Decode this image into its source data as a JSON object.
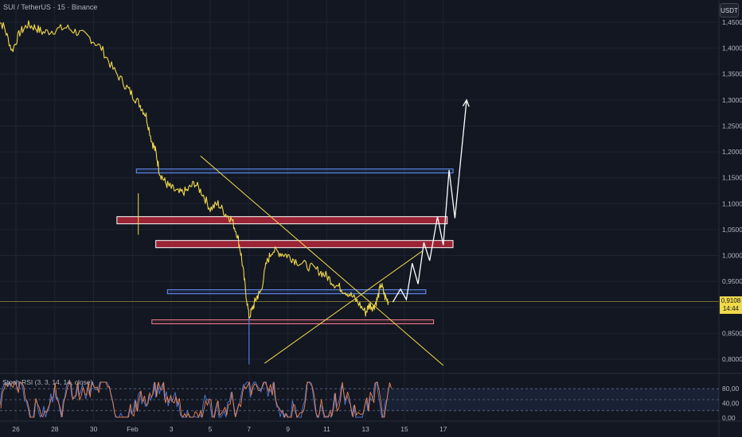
{
  "header": {
    "title": "SUI / TetherUS · 15 · Binance",
    "currency_label": "USDT"
  },
  "price_tag": {
    "value": "0,9108",
    "countdown": "14:44"
  },
  "indicator": {
    "label": "Stoch RSI (3, 3, 14, 14, close)"
  },
  "chart_data": {
    "type": "line",
    "title": "SUI / TetherUS · 15 · Binance",
    "x_tick_labels": [
      "26",
      "28",
      "30",
      "Feb",
      "3",
      "5",
      "7",
      "9",
      "11",
      "13",
      "15",
      "17"
    ],
    "y_tick_labels": [
      "1,4500",
      "1,4000",
      "1,3500",
      "1,3000",
      "1,2500",
      "1,2000",
      "1,1500",
      "1,1000",
      "1,0500",
      "1,0000",
      "0,9500",
      "0,9000",
      "0,8500",
      "0,8000"
    ],
    "ylim": [
      0.77,
      1.47
    ],
    "x_index_range": [
      0,
      12
    ],
    "last_price": 0.9108,
    "colors": {
      "price": "#f0d94a",
      "blue_zone": "#4a7be3",
      "red_zone": "#e84b5e",
      "trendline": "#f0d94a",
      "projection": "#ffffff",
      "stoch_k": "#4a7be3",
      "stoch_d": "#f0824a"
    },
    "price_series": {
      "x": [
        -0.5,
        -0.3,
        -0.1,
        0.1,
        0.3,
        0.5,
        0.7,
        1.0,
        1.3,
        1.6,
        1.9,
        2.2,
        2.5,
        2.8,
        3.0,
        3.2,
        3.35,
        3.5,
        3.6,
        3.7,
        3.85,
        4.0,
        4.2,
        4.4,
        4.6,
        4.8,
        5.0,
        5.2,
        5.4,
        5.55,
        5.7,
        5.8,
        5.9,
        6.0,
        6.1,
        6.2,
        6.3,
        6.45,
        6.6,
        6.8,
        7.0,
        7.2,
        7.5,
        7.8,
        8.0,
        8.2,
        8.4,
        8.6,
        8.8,
        9.0,
        9.1,
        9.2,
        9.3,
        9.4,
        9.5,
        9.6
      ],
      "y": [
        1.46,
        1.44,
        1.395,
        1.43,
        1.445,
        1.44,
        1.43,
        1.435,
        1.44,
        1.43,
        1.42,
        1.4,
        1.36,
        1.33,
        1.31,
        1.29,
        1.27,
        1.22,
        1.2,
        1.16,
        1.14,
        1.13,
        1.12,
        1.125,
        1.14,
        1.12,
        1.09,
        1.1,
        1.08,
        1.07,
        1.04,
        1.0,
        0.94,
        0.88,
        0.9,
        0.92,
        0.93,
        0.985,
        1.01,
        1.005,
        1.0,
        0.99,
        0.98,
        0.97,
        0.96,
        0.945,
        0.935,
        0.925,
        0.91,
        0.89,
        0.905,
        0.9,
        0.915,
        0.945,
        0.92,
        0.91
      ]
    },
    "zones": [
      {
        "kind": "blue",
        "price": 1.163,
        "x_start": 3.1,
        "x_end": 11.25
      },
      {
        "kind": "red",
        "price": 1.068,
        "x_start": 2.6,
        "x_end": 11.1
      },
      {
        "kind": "red",
        "price": 1.022,
        "x_start": 3.6,
        "x_end": 11.25
      },
      {
        "kind": "blue",
        "price": 0.93,
        "x_start": 3.9,
        "x_end": 10.55
      },
      {
        "kind": "red",
        "price": 0.872,
        "x_start": 3.5,
        "x_end": 10.75
      }
    ],
    "trendlines": [
      {
        "x": [
          4.75,
          11.0
        ],
        "y": [
          1.192,
          0.788
        ]
      },
      {
        "x": [
          6.4,
          10.45
        ],
        "y": [
          0.792,
          1.008
        ]
      }
    ],
    "projection_path": {
      "x": [
        9.7,
        9.9,
        10.05,
        10.2,
        10.35,
        10.5,
        10.65,
        10.85,
        11.0,
        11.15,
        11.3,
        11.6
      ],
      "y": [
        0.91,
        0.935,
        0.915,
        0.985,
        0.945,
        1.025,
        0.99,
        1.075,
        1.02,
        1.165,
        1.072,
        1.3
      ]
    },
    "stoch": {
      "levels": [
        80,
        50,
        20
      ],
      "tick_labels": [
        "80,00",
        "40,00",
        "0,00"
      ],
      "ylim": [
        0,
        100
      ]
    }
  }
}
